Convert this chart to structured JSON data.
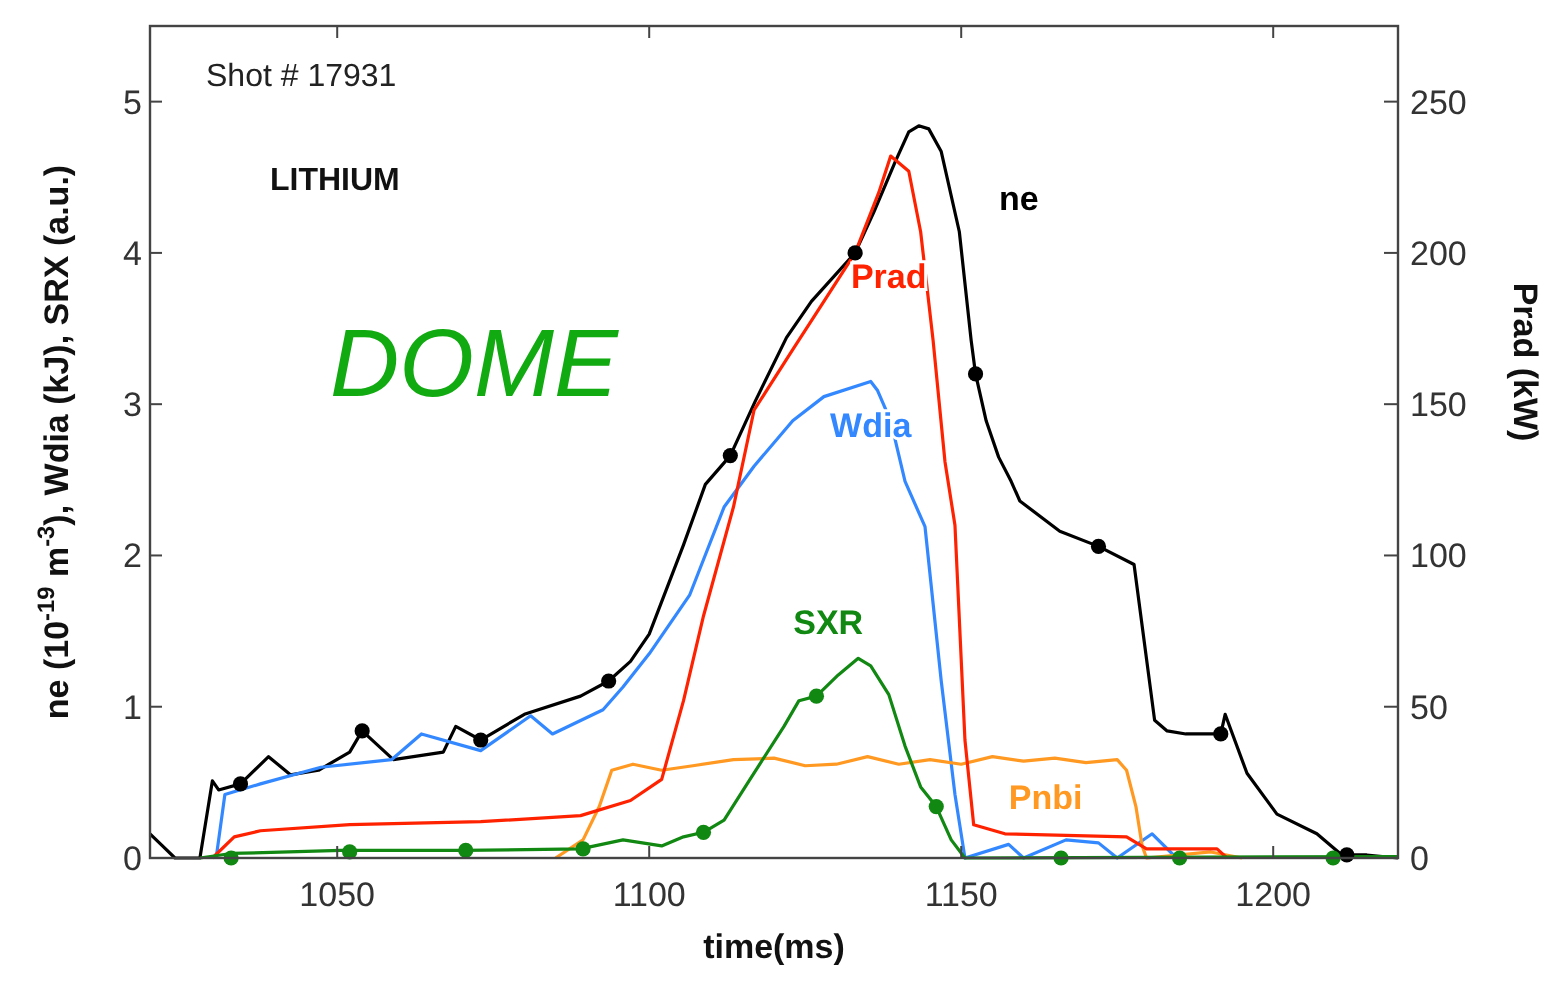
{
  "chart_data": {
    "type": "line",
    "xlabel": "time(ms)",
    "ylabel": "ne (10$^{-19}$ m$^{-3}$), Wdia (kJ), SRX (a.u.)",
    "y2label": "Prad (kW)",
    "annotations": [
      "Shot # 17931",
      "LITHIUM",
      "DOME"
    ],
    "xlim": [
      1020,
      1220
    ],
    "xticks": [
      1050,
      1100,
      1150,
      1200
    ],
    "ylim": [
      0,
      5.5
    ],
    "yticks": [
      0,
      1,
      2,
      3,
      4,
      5
    ],
    "y2lim": [
      0,
      275
    ],
    "y2ticks": [
      0,
      50,
      100,
      150,
      200,
      250
    ],
    "grid": false,
    "line_style": "solid",
    "series": [
      {
        "name": "ne",
        "color": "#000000",
        "x": [
          1020,
          1022,
          1024,
          1028,
          1030,
          1031,
          1034.5,
          1039,
          1042.5,
          1047,
          1052,
          1054,
          1059,
          1067,
          1069,
          1073,
          1080,
          1089,
          1093.5,
          1097,
          1100,
          1105.5,
          1109,
          1113,
          1117,
          1122,
          1126,
          1133,
          1136,
          1139.4,
          1141.6,
          1143.2,
          1144.8,
          1146.8,
          1149.7,
          1151.6,
          1152.3,
          1154,
          1156,
          1158,
          1159.4,
          1165.8,
          1172,
          1177.7,
          1181,
          1183,
          1186,
          1191.6,
          1192.3,
          1195.8,
          1200.6,
          1207,
          1211,
          1215,
          1220
        ],
        "values": [
          0.16,
          0.08,
          0,
          0,
          0.51,
          0.45,
          0.49,
          0.67,
          0.55,
          0.58,
          0.7,
          0.84,
          0.65,
          0.7,
          0.87,
          0.78,
          0.95,
          1.07,
          1.17,
          1.3,
          1.48,
          2.07,
          2.47,
          2.66,
          3.02,
          3.44,
          3.68,
          4.0,
          4.27,
          4.6,
          4.8,
          4.84,
          4.82,
          4.67,
          4.14,
          3.42,
          3.2,
          2.89,
          2.65,
          2.49,
          2.36,
          2.16,
          2.06,
          1.94,
          0.91,
          0.84,
          0.82,
          0.82,
          0.95,
          0.56,
          0.29,
          0.16,
          0.02,
          0.02,
          0
        ]
      },
      {
        "name": "Wdia",
        "color": "#3388ff",
        "x": [
          1030.6,
          1032,
          1037.7,
          1047.4,
          1058.7,
          1063.5,
          1073,
          1081,
          1084.5,
          1092.6,
          1095.8,
          1100,
          1106.5,
          1112,
          1116.8,
          1123,
          1128,
          1135.5,
          1136.6,
          1138.7,
          1141,
          1144.2,
          1146.8,
          1149,
          1150.6,
          1157.6,
          1160,
          1166.8,
          1172,
          1175,
          1180.6,
          1184.5
        ],
        "values": [
          0,
          0.42,
          0.49,
          0.6,
          0.65,
          0.82,
          0.71,
          0.94,
          0.82,
          0.98,
          1.13,
          1.35,
          1.74,
          2.32,
          2.59,
          2.89,
          3.05,
          3.15,
          3.09,
          2.89,
          2.49,
          2.19,
          1.17,
          0.42,
          0,
          0.09,
          0,
          0.12,
          0.1,
          0,
          0.16,
          0
        ]
      },
      {
        "name": "Pnbi",
        "color": "#ff9922",
        "x": [
          1085,
          1089.4,
          1092,
          1094,
          1097.4,
          1102,
          1107,
          1113.5,
          1120,
          1125,
          1130,
          1135,
          1140,
          1145,
          1150,
          1155,
          1160,
          1165,
          1170,
          1175,
          1176.5,
          1178,
          1179,
          1179.7,
          1190,
          1195
        ],
        "values": [
          0,
          0.12,
          0.34,
          0.58,
          0.62,
          0.58,
          0.61,
          0.65,
          0.66,
          0.61,
          0.62,
          0.67,
          0.62,
          0.65,
          0.62,
          0.67,
          0.64,
          0.66,
          0.63,
          0.65,
          0.58,
          0.34,
          0.08,
          0,
          0.04,
          0
        ]
      },
      {
        "name": "Prad",
        "color": "#ff2200",
        "axis": "y2",
        "x": [
          1030,
          1033.5,
          1037.7,
          1052,
          1073,
          1089,
          1097,
          1102,
          1105.5,
          1108.7,
          1113.5,
          1116.8,
          1123,
          1128,
          1133,
          1136.8,
          1138.7,
          1141.6,
          1143.5,
          1145.5,
          1147.4,
          1149,
          1150.6,
          1152,
          1157,
          1176.5,
          1179.7,
          1191,
          1192.6
        ],
        "values": [
          0,
          7,
          9,
          11,
          12,
          14,
          19,
          26,
          52,
          80,
          116,
          148,
          168,
          184,
          200,
          220,
          232,
          227,
          207,
          171,
          131,
          110,
          39,
          11,
          8,
          7,
          3,
          3,
          0
        ]
      },
      {
        "name": "SXR",
        "color": "#118811",
        "x": [
          1028,
          1033,
          1050.6,
          1070,
          1089,
          1095.8,
          1102,
          1105.5,
          1108.7,
          1112,
          1116,
          1121.6,
          1124,
          1126.8,
          1130.3,
          1133.5,
          1135.5,
          1138.4,
          1141,
          1143.5,
          1146,
          1148.4,
          1150.6,
          1220
        ],
        "values": [
          0,
          0.03,
          0.05,
          0.05,
          0.06,
          0.12,
          0.08,
          0.14,
          0.17,
          0.25,
          0.51,
          0.87,
          1.04,
          1.07,
          1.21,
          1.32,
          1.27,
          1.08,
          0.74,
          0.47,
          0.34,
          0.12,
          0,
          0.01
        ]
      },
      {
        "type": "scatter",
        "marker": "circle",
        "color": "#000000",
        "x": [
          1034.5,
          1054,
          1073,
          1093.5,
          1113,
          1133,
          1152.3,
          1172,
          1191.6,
          1211.8
        ],
        "values": [
          0.49,
          0.84,
          0.78,
          1.17,
          2.66,
          4.0,
          3.2,
          2.06,
          0.82,
          0.02
        ]
      },
      {
        "type": "scatter",
        "marker": "circle",
        "color": "#118811",
        "x": [
          1033,
          1052,
          1070.6,
          1089.4,
          1108.7,
          1126.8,
          1146,
          1166,
          1185,
          1209.6
        ],
        "values": [
          0,
          0.04,
          0.05,
          0.06,
          0.17,
          1.07,
          0.34,
          0,
          0,
          0
        ]
      }
    ]
  }
}
